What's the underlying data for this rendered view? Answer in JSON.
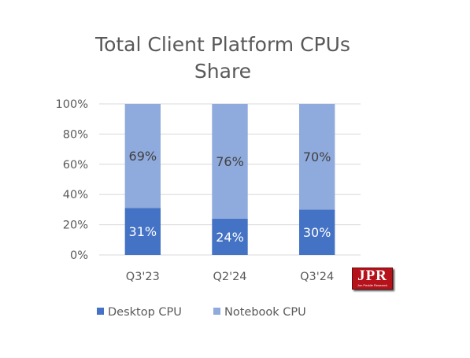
{
  "chart_data": {
    "type": "bar",
    "stacked": true,
    "title_lines": [
      "Total Client Platform CPUs",
      "Share"
    ],
    "categories": [
      "Q3'23",
      "Q2'24",
      "Q3'24"
    ],
    "series": [
      {
        "name": "Desktop CPU",
        "values": [
          31,
          24,
          30
        ],
        "labels": [
          "31%",
          "24%",
          "30%"
        ],
        "color": "#4472c4",
        "label_color": "#ffffff"
      },
      {
        "name": "Notebook CPU",
        "values": [
          69,
          76,
          70
        ],
        "labels": [
          "69%",
          "76%",
          "70%"
        ],
        "color": "#8faadc",
        "label_color": "#404040"
      }
    ],
    "y_ticks": [
      "0%",
      "20%",
      "40%",
      "60%",
      "80%",
      "100%"
    ],
    "ylim": [
      0,
      100
    ],
    "grid": true,
    "legend_position": "bottom-left"
  },
  "logo": {
    "text": "JPR",
    "subtext": "Jon Peddie Research",
    "color": "#b5121b"
  }
}
